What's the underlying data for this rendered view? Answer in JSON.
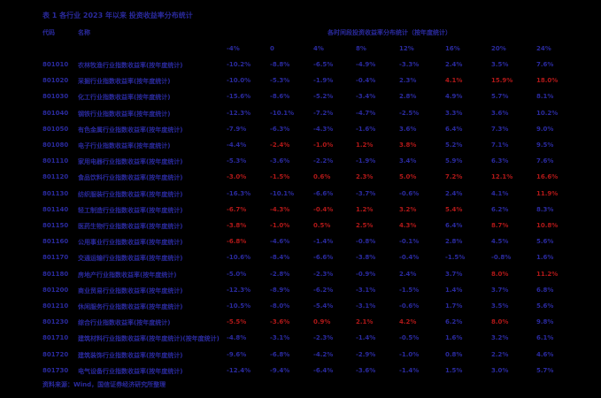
{
  "title": "表 1 各行业 2023 年以来 投资收益率分布统计",
  "header": {
    "code_label": "代码",
    "name_label": "名称",
    "group_label": "各时间段投资收益率分布统计（按年度统计）",
    "columns": [
      "-4%",
      "0",
      "4%",
      "8%",
      "12%",
      "16%",
      "20%",
      "24%"
    ]
  },
  "colors": {
    "positive": "#b01818",
    "negative": "#2a2a9e"
  },
  "rows": [
    {
      "code": "801010",
      "name": "农林牧渔行业指数收益率(按年度统计)",
      "values": [
        "-10.2%",
        "-8.8%",
        "-6.5%",
        "-4.9%",
        "-3.3%",
        "2.4%",
        "3.5%",
        "7.6%"
      ],
      "signs": [
        "n",
        "n",
        "n",
        "n",
        "n",
        "n",
        "n",
        "n"
      ]
    },
    {
      "code": "801020",
      "name": "采掘行业指数收益率(按年度统计)",
      "values": [
        "-10.0%",
        "-5.3%",
        "-1.9%",
        "-0.4%",
        "2.3%",
        "4.1%",
        "15.9%",
        "18.0%"
      ],
      "signs": [
        "n",
        "n",
        "n",
        "n",
        "n",
        "p",
        "p",
        "p"
      ]
    },
    {
      "code": "801030",
      "name": "化工行业指数收益率(按年度统计)",
      "values": [
        "-15.6%",
        "-8.6%",
        "-5.2%",
        "-3.4%",
        "2.8%",
        "4.9%",
        "5.7%",
        "8.1%"
      ],
      "signs": [
        "n",
        "n",
        "n",
        "n",
        "n",
        "n",
        "n",
        "n"
      ]
    },
    {
      "code": "801040",
      "name": "钢铁行业指数收益率(按年度统计)",
      "values": [
        "-12.3%",
        "-10.1%",
        "-7.2%",
        "-4.7%",
        "-2.5%",
        "3.3%",
        "3.6%",
        "10.2%"
      ],
      "signs": [
        "n",
        "n",
        "n",
        "n",
        "n",
        "n",
        "n",
        "n"
      ]
    },
    {
      "code": "801050",
      "name": "有色金属行业指数收益率(按年度统计)",
      "values": [
        "-7.9%",
        "-6.3%",
        "-4.3%",
        "-1.6%",
        "3.6%",
        "6.4%",
        "7.3%",
        "9.0%"
      ],
      "signs": [
        "n",
        "n",
        "n",
        "n",
        "n",
        "n",
        "n",
        "n"
      ]
    },
    {
      "code": "801080",
      "name": "电子行业指数收益率(按年度统计)",
      "values": [
        "-4.4%",
        "-2.4%",
        "-1.0%",
        "1.2%",
        "3.8%",
        "5.2%",
        "7.1%",
        "9.5%"
      ],
      "signs": [
        "n",
        "p",
        "p",
        "p",
        "p",
        "n",
        "n",
        "n"
      ]
    },
    {
      "code": "801110",
      "name": "家用电器行业指数收益率(按年度统计)",
      "values": [
        "-5.3%",
        "-3.6%",
        "-2.2%",
        "-1.9%",
        "3.4%",
        "5.9%",
        "6.3%",
        "7.6%"
      ],
      "signs": [
        "n",
        "n",
        "n",
        "n",
        "n",
        "n",
        "n",
        "n"
      ]
    },
    {
      "code": "801120",
      "name": "食品饮料行业指数收益率(按年度统计)",
      "values": [
        "-3.0%",
        "-1.5%",
        "0.6%",
        "2.3%",
        "5.0%",
        "7.2%",
        "12.1%",
        "16.6%"
      ],
      "signs": [
        "p",
        "p",
        "p",
        "p",
        "p",
        "p",
        "p",
        "p"
      ]
    },
    {
      "code": "801130",
      "name": "纺织服装行业指数收益率(按年度统计)",
      "values": [
        "-16.3%",
        "-10.1%",
        "-6.6%",
        "-3.7%",
        "-0.6%",
        "2.4%",
        "4.1%",
        "11.9%"
      ],
      "signs": [
        "n",
        "n",
        "n",
        "n",
        "n",
        "n",
        "n",
        "p"
      ]
    },
    {
      "code": "801140",
      "name": "轻工制造行业指数收益率(按年度统计)",
      "values": [
        "-6.7%",
        "-4.3%",
        "-0.4%",
        "1.2%",
        "3.2%",
        "5.4%",
        "6.2%",
        "8.3%"
      ],
      "signs": [
        "p",
        "p",
        "p",
        "p",
        "p",
        "p",
        "n",
        "n"
      ]
    },
    {
      "code": "801150",
      "name": "医药生物行业指数收益率(按年度统计)",
      "values": [
        "-3.8%",
        "-1.0%",
        "0.5%",
        "2.5%",
        "4.3%",
        "6.4%",
        "8.7%",
        "10.8%"
      ],
      "signs": [
        "p",
        "p",
        "p",
        "p",
        "p",
        "n",
        "p",
        "p"
      ]
    },
    {
      "code": "801160",
      "name": "公用事业行业指数收益率(按年度统计)",
      "values": [
        "-6.8%",
        "-4.6%",
        "-1.4%",
        "-0.8%",
        "-0.1%",
        "2.8%",
        "4.5%",
        "5.6%"
      ],
      "signs": [
        "p",
        "n",
        "n",
        "n",
        "n",
        "n",
        "n",
        "n"
      ]
    },
    {
      "code": "801170",
      "name": "交通运输行业指数收益率(按年度统计)",
      "values": [
        "-10.6%",
        "-8.4%",
        "-6.6%",
        "-3.8%",
        "-0.4%",
        "-1.5%",
        "-0.8%",
        "1.6%"
      ],
      "signs": [
        "n",
        "n",
        "n",
        "n",
        "n",
        "n",
        "n",
        "n"
      ]
    },
    {
      "code": "801180",
      "name": "房地产行业指数收益率(按年度统计)",
      "values": [
        "-5.0%",
        "-2.8%",
        "-2.3%",
        "-0.9%",
        "2.4%",
        "3.7%",
        "8.0%",
        "11.2%"
      ],
      "signs": [
        "n",
        "n",
        "n",
        "n",
        "n",
        "n",
        "p",
        "p"
      ]
    },
    {
      "code": "801200",
      "name": "商业贸易行业指数收益率(按年度统计)",
      "values": [
        "-12.3%",
        "-8.9%",
        "-6.2%",
        "-3.1%",
        "-1.5%",
        "1.4%",
        "3.7%",
        "6.8%"
      ],
      "signs": [
        "n",
        "n",
        "n",
        "n",
        "n",
        "n",
        "n",
        "n"
      ]
    },
    {
      "code": "801210",
      "name": "休闲服务行业指数收益率(按年度统计)",
      "values": [
        "-10.5%",
        "-8.0%",
        "-5.4%",
        "-3.1%",
        "-0.6%",
        "1.7%",
        "3.5%",
        "5.6%"
      ],
      "signs": [
        "n",
        "n",
        "n",
        "n",
        "n",
        "n",
        "n",
        "n"
      ]
    },
    {
      "code": "801230",
      "name": "综合行业指数收益率(按年度统计)",
      "values": [
        "-5.5%",
        "-3.6%",
        "0.9%",
        "2.1%",
        "4.2%",
        "6.2%",
        "8.0%",
        "9.8%"
      ],
      "signs": [
        "p",
        "p",
        "p",
        "p",
        "p",
        "n",
        "p",
        "n"
      ]
    },
    {
      "code": "801710",
      "name": "建筑材料行业指数收益率(按年度统计)(按年度统计)",
      "values": [
        "-4.8%",
        "-3.1%",
        "-2.3%",
        "-1.4%",
        "-0.5%",
        "1.6%",
        "3.2%",
        "6.1%"
      ],
      "signs": [
        "n",
        "n",
        "n",
        "n",
        "n",
        "n",
        "n",
        "n"
      ]
    },
    {
      "code": "801720",
      "name": "建筑装饰行业指数收益率(按年度统计)",
      "values": [
        "-9.6%",
        "-6.8%",
        "-4.2%",
        "-2.9%",
        "-1.0%",
        "0.8%",
        "2.2%",
        "4.6%"
      ],
      "signs": [
        "n",
        "n",
        "n",
        "n",
        "n",
        "n",
        "n",
        "n"
      ]
    },
    {
      "code": "801730",
      "name": "电气设备行业指数收益率(按年度统计)",
      "values": [
        "-12.4%",
        "-9.4%",
        "-6.4%",
        "-3.6%",
        "-1.4%",
        "1.5%",
        "3.0%",
        "5.7%"
      ],
      "signs": [
        "n",
        "n",
        "n",
        "n",
        "n",
        "n",
        "n",
        "n"
      ]
    }
  ],
  "footer": "资料来源：Wind，国信证券经济研究所整理"
}
